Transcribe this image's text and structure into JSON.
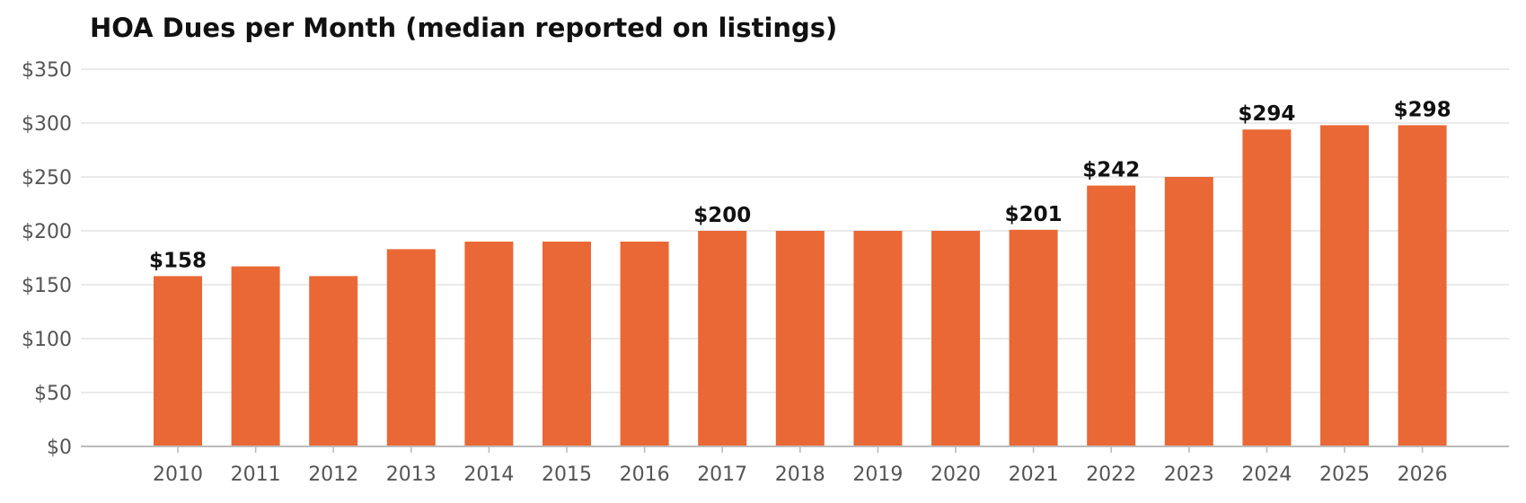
{
  "chart_data": {
    "type": "bar",
    "title": "HOA Dues per Month (median reported on listings)",
    "xlabel": "",
    "ylabel": "",
    "categories": [
      "2010",
      "2011",
      "2012",
      "2013",
      "2014",
      "2015",
      "2016",
      "2017",
      "2018",
      "2019",
      "2020",
      "2021",
      "2022",
      "2023",
      "2024",
      "2025",
      "2026"
    ],
    "values": [
      158,
      167,
      158,
      183,
      190,
      190,
      190,
      200,
      200,
      200,
      200,
      201,
      242,
      250,
      294,
      298,
      298
    ],
    "data_labels": [
      "$158",
      "",
      "",
      "",
      "",
      "",
      "",
      "$200",
      "",
      "",
      "",
      "$201",
      "$242",
      "",
      "$294",
      "",
      "$298"
    ],
    "ylim": [
      0,
      350
    ],
    "yticks": [
      0,
      50,
      100,
      150,
      200,
      250,
      300,
      350
    ],
    "ytick_labels": [
      "$0",
      "$50",
      "$100",
      "$150",
      "$200",
      "$250",
      "$300",
      "$350"
    ],
    "grid": "horizontal",
    "legend": "none",
    "colors": {
      "bar": "#E96835",
      "grid": "#E3E3E3",
      "axis": "#BBBBBB",
      "tick_text": "#555555",
      "title_text": "#111111"
    }
  }
}
